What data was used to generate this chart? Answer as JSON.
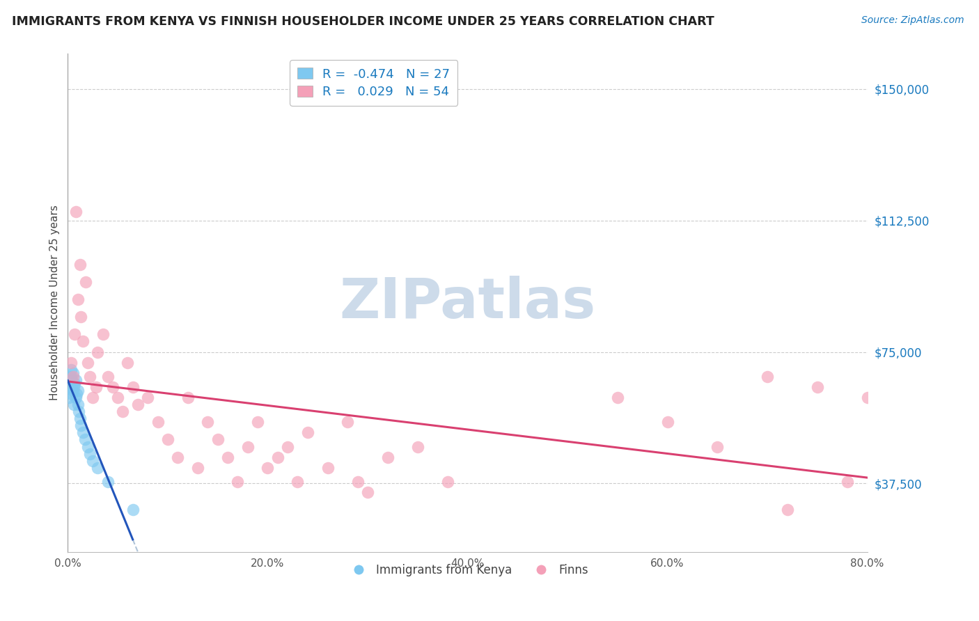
{
  "title": "IMMIGRANTS FROM KENYA VS FINNISH HOUSEHOLDER INCOME UNDER 25 YEARS CORRELATION CHART",
  "source": "Source: ZipAtlas.com",
  "ylabel": "Householder Income Under 25 years",
  "xlim": [
    0.0,
    80.0
  ],
  "ylim": [
    18000,
    160000
  ],
  "yticks": [
    37500,
    75000,
    112500,
    150000
  ],
  "ytick_labels": [
    "$37,500",
    "$75,000",
    "$112,500",
    "$150,000"
  ],
  "xticks": [
    0.0,
    20.0,
    40.0,
    60.0,
    80.0
  ],
  "xtick_labels": [
    "0.0%",
    "20.0%",
    "40.0%",
    "60.0%",
    "80.0%"
  ],
  "blue_label": "Immigrants from Kenya",
  "pink_label": "Finns",
  "blue_R": -0.474,
  "blue_N": 27,
  "pink_R": 0.029,
  "pink_N": 54,
  "blue_color": "#7ec8f0",
  "pink_color": "#f4a0b8",
  "trend_blue": "#2255bb",
  "trend_pink": "#d94070",
  "trend_gray": "#b0c4d8",
  "watermark": "ZIPatlas",
  "watermark_color": "#c8d8e8",
  "blue_x": [
    0.1,
    0.2,
    0.3,
    0.3,
    0.4,
    0.4,
    0.5,
    0.5,
    0.6,
    0.6,
    0.7,
    0.8,
    0.8,
    0.9,
    1.0,
    1.0,
    1.1,
    1.2,
    1.3,
    1.5,
    1.7,
    2.0,
    2.2,
    2.5,
    3.0,
    4.0,
    6.5
  ],
  "blue_y": [
    62000,
    65000,
    68000,
    70000,
    63000,
    67000,
    64000,
    69000,
    60000,
    65000,
    66000,
    62000,
    67000,
    63000,
    60000,
    64000,
    58000,
    56000,
    54000,
    52000,
    50000,
    48000,
    46000,
    44000,
    42000,
    38000,
    30000
  ],
  "pink_x": [
    0.3,
    0.5,
    0.7,
    0.8,
    1.0,
    1.2,
    1.3,
    1.5,
    1.8,
    2.0,
    2.2,
    2.5,
    2.8,
    3.0,
    3.5,
    4.0,
    4.5,
    5.0,
    5.5,
    6.0,
    6.5,
    7.0,
    8.0,
    9.0,
    10.0,
    11.0,
    12.0,
    13.0,
    14.0,
    15.0,
    16.0,
    17.0,
    18.0,
    19.0,
    20.0,
    21.0,
    22.0,
    23.0,
    24.0,
    26.0,
    28.0,
    29.0,
    30.0,
    32.0,
    35.0,
    38.0,
    55.0,
    60.0,
    65.0,
    70.0,
    72.0,
    75.0,
    78.0,
    80.0
  ],
  "pink_y": [
    72000,
    68000,
    80000,
    115000,
    90000,
    100000,
    85000,
    78000,
    95000,
    72000,
    68000,
    62000,
    65000,
    75000,
    80000,
    68000,
    65000,
    62000,
    58000,
    72000,
    65000,
    60000,
    62000,
    55000,
    50000,
    45000,
    62000,
    42000,
    55000,
    50000,
    45000,
    38000,
    48000,
    55000,
    42000,
    45000,
    48000,
    38000,
    52000,
    42000,
    55000,
    38000,
    35000,
    45000,
    48000,
    38000,
    62000,
    55000,
    48000,
    68000,
    30000,
    65000,
    38000,
    62000
  ]
}
